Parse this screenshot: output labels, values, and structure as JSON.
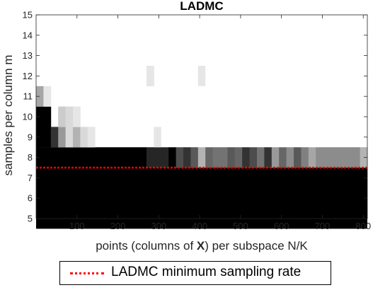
{
  "chart_data": {
    "type": "heatmap",
    "title": "LADMC",
    "xlabel": {
      "pre": "points (columns of ",
      "bold": "X",
      "post": ") per subspace N/K"
    },
    "ylabel": "samples per column m",
    "x_ticks": [
      100,
      200,
      300,
      400,
      500,
      600,
      700,
      800
    ],
    "y_ticks": [
      5,
      6,
      7,
      8,
      9,
      10,
      11,
      12,
      13,
      14,
      15
    ],
    "xlim": [
      0,
      810
    ],
    "ylim": [
      5,
      15
    ],
    "cell_width": 18,
    "colormap": "gray (0 = black, 1 = white)",
    "rows": [
      {
        "m": 8,
        "x_start": 0,
        "x_end": 810,
        "default": 0.0,
        "values": [
          [
            270,
            0.15
          ],
          [
            288,
            0.15
          ],
          [
            306,
            0.15
          ],
          [
            342,
            0.3
          ],
          [
            360,
            0.2
          ],
          [
            378,
            0.35
          ],
          [
            396,
            0.7
          ],
          [
            414,
            0.4
          ],
          [
            432,
            0.45
          ],
          [
            450,
            0.45
          ],
          [
            468,
            0.35
          ],
          [
            486,
            0.4
          ],
          [
            504,
            0.2
          ],
          [
            522,
            0.3
          ],
          [
            540,
            0.45
          ],
          [
            558,
            0.2
          ],
          [
            576,
            0.6
          ],
          [
            594,
            0.4
          ],
          [
            612,
            0.55
          ],
          [
            630,
            0.35
          ],
          [
            648,
            0.5
          ],
          [
            666,
            0.65
          ],
          [
            684,
            0.55
          ],
          [
            702,
            0.55
          ],
          [
            720,
            0.55
          ],
          [
            738,
            0.55
          ],
          [
            756,
            0.55
          ],
          [
            774,
            0.55
          ],
          [
            792,
            0.7
          ]
        ]
      },
      {
        "m": 9,
        "x_start": 0,
        "x_end": 144,
        "default": 0.0,
        "values": [
          [
            36,
            0.2
          ],
          [
            54,
            0.6
          ],
          [
            72,
            0.85
          ],
          [
            90,
            0.7
          ],
          [
            108,
            0.85
          ],
          [
            126,
            0.9
          ],
          [
            288,
            0.9
          ]
        ]
      },
      {
        "m": 10,
        "x_start": 0,
        "x_end": 108,
        "default": 1.0,
        "values": [
          [
            0,
            0.0
          ],
          [
            18,
            0.0
          ],
          [
            54,
            0.8
          ],
          [
            72,
            0.85
          ],
          [
            90,
            0.9
          ]
        ]
      },
      {
        "m": 11,
        "x_start": 0,
        "x_end": 36,
        "default": 1.0,
        "values": [
          [
            0,
            0.65
          ],
          [
            18,
            0.9
          ]
        ]
      },
      {
        "m": 12,
        "x_start": 270,
        "x_end": 288,
        "default": 0.9,
        "values": [
          [
            270,
            0.9
          ],
          [
            396,
            0.9
          ]
        ]
      }
    ],
    "threshold": {
      "label": "LADMC minimum sampling rate",
      "y": 7.5,
      "color": "#ff0000"
    },
    "legend_placement": "bottom-center"
  }
}
